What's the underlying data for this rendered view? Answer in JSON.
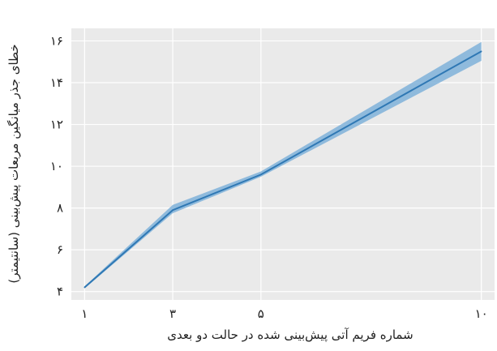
{
  "chart_data": {
    "type": "line",
    "title": "",
    "xlabel": "شماره فریم آتی پیش‌بینی شده در حالت دو بعدی",
    "ylabel": "خطای جذر میانگین مربعات پیش‌بینی (سانتیمتر)",
    "x_ticks": [
      {
        "value": 1,
        "label": "۱"
      },
      {
        "value": 3,
        "label": "۳"
      },
      {
        "value": 5,
        "label": "۵"
      },
      {
        "value": 10,
        "label": "۱۰"
      }
    ],
    "y_ticks": [
      {
        "value": 4,
        "label": "۴"
      },
      {
        "value": 6,
        "label": "۶"
      },
      {
        "value": 8,
        "label": "۸"
      },
      {
        "value": 10,
        "label": "۱۰"
      },
      {
        "value": 12,
        "label": "۱۲"
      },
      {
        "value": 14,
        "label": "۱۴"
      },
      {
        "value": 16,
        "label": "۱۶"
      }
    ],
    "xlim": [
      0.7,
      10.3
    ],
    "ylim": [
      3.6,
      16.6
    ],
    "grid": true,
    "colors": {
      "line": "#2f78b4",
      "band": "#7fb2d9",
      "plot_bg": "#eaeaea",
      "grid": "#ffffff"
    },
    "series": [
      {
        "x": [
          1,
          3,
          5,
          10
        ],
        "values": [
          4.2,
          7.9,
          9.6,
          15.5
        ],
        "lower": [
          4.15,
          7.75,
          9.5,
          15.05
        ],
        "upper": [
          4.25,
          8.15,
          9.75,
          15.95
        ]
      }
    ]
  }
}
